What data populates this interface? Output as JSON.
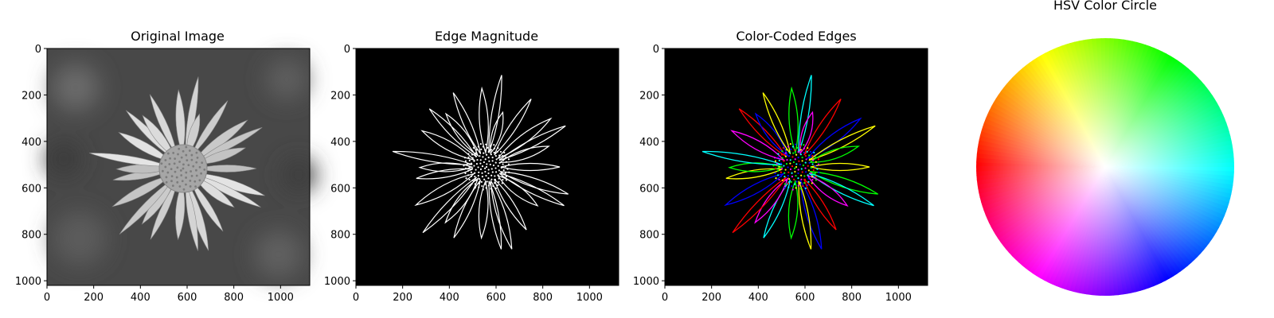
{
  "chart_data": [
    {
      "type": "image",
      "title": "Original Image",
      "image": "grayscale-daisy-photo",
      "xticks": [
        "0",
        "200",
        "400",
        "600",
        "800",
        "1000"
      ],
      "yticks": [
        "0",
        "200",
        "400",
        "600",
        "800",
        "1000"
      ],
      "xlim": [
        0,
        1125
      ],
      "ylim": [
        1020,
        0
      ],
      "colors": {
        "background": "#4a4a4a",
        "petals": "#d6d6d6",
        "center": "#a8a8a8"
      }
    },
    {
      "type": "image",
      "title": "Edge Magnitude",
      "image": "daisy-edge-magnitude",
      "xticks": [
        "0",
        "200",
        "400",
        "600",
        "800",
        "1000"
      ],
      "yticks": [
        "0",
        "200",
        "400",
        "600",
        "800",
        "1000"
      ],
      "xlim": [
        0,
        1125
      ],
      "ylim": [
        1020,
        0
      ],
      "colors": {
        "background": "#000000",
        "edges": "#ffffff"
      }
    },
    {
      "type": "image",
      "title": "Color-Coded Edges",
      "image": "daisy-color-coded-edges",
      "xticks": [
        "0",
        "200",
        "400",
        "600",
        "800",
        "1000"
      ],
      "yticks": [
        "0",
        "200",
        "400",
        "600",
        "800",
        "1000"
      ],
      "xlim": [
        0,
        1125
      ],
      "ylim": [
        1020,
        0
      ],
      "colors": {
        "background": "#000000",
        "edges": [
          "#ffff00",
          "#00ff00",
          "#00ffff",
          "#ff00ff",
          "#ff0000",
          "#0000ff"
        ]
      }
    },
    {
      "type": "image",
      "title": "HSV Color Circle",
      "image": "hsv-color-wheel",
      "colors": {
        "center": "#ffffff",
        "hues": [
          "#ff0000",
          "#ffff00",
          "#00ff00",
          "#00ffff",
          "#0000ff",
          "#ff00ff"
        ]
      }
    }
  ]
}
